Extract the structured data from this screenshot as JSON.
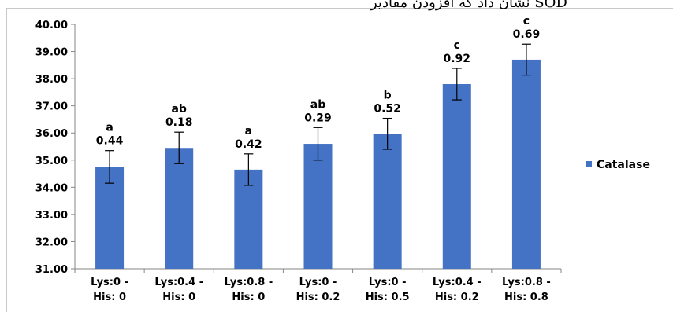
{
  "header": {
    "clipped_text": "SOD نشان داد که افزودن مقادیر"
  },
  "chart_data": {
    "type": "bar",
    "categories": [
      [
        "Lys:0 -",
        "His: 0"
      ],
      [
        "Lys:0.4 -",
        "His: 0"
      ],
      [
        "Lys:0.8 -",
        "His: 0"
      ],
      [
        "Lys:0 -",
        "His: 0.2"
      ],
      [
        "Lys:0 -",
        "His: 0.5"
      ],
      [
        "Lys:0.4 -",
        "His: 0.2"
      ],
      [
        "Lys:0.8 -",
        "His: 0.8"
      ]
    ],
    "series": [
      {
        "name": "Catalase",
        "color": "#4472c4",
        "values": [
          34.75,
          35.45,
          34.65,
          35.6,
          35.97,
          37.8,
          38.7
        ],
        "errors": [
          0.6,
          0.58,
          0.58,
          0.6,
          0.57,
          0.58,
          0.57
        ],
        "letters": [
          "a",
          "ab",
          "a",
          "ab",
          "b",
          "c",
          "c"
        ],
        "labels": [
          "0.44",
          "0.18",
          "0.42",
          "0.29",
          "0.52",
          "0.92",
          "0.69"
        ]
      }
    ],
    "ylim": [
      31,
      40
    ],
    "yticks": [
      "31.00",
      "32.00",
      "33.00",
      "34.00",
      "35.00",
      "36.00",
      "37.00",
      "38.00",
      "39.00",
      "40.00"
    ],
    "grid": false,
    "legend_position": "right",
    "title": "",
    "xlabel": "",
    "ylabel": ""
  }
}
